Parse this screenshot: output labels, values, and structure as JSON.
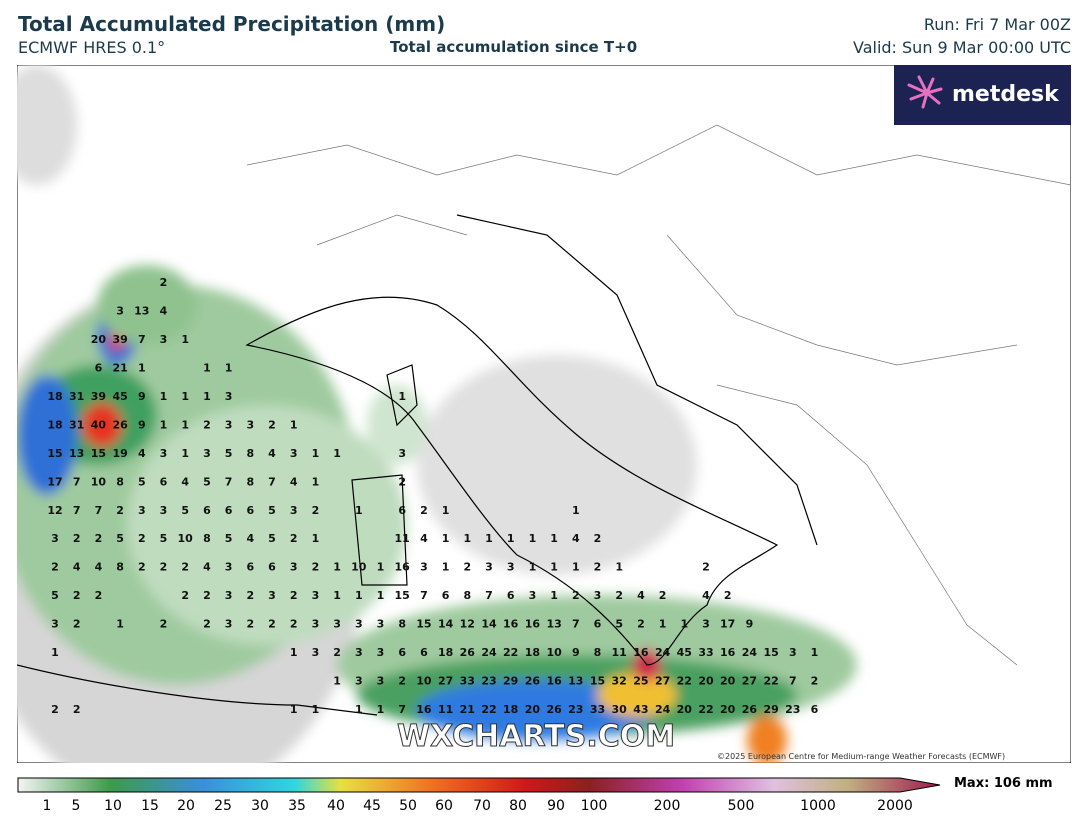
{
  "header": {
    "title": "Total Accumulated Precipitation (mm)",
    "model": "ECMWF HRES 0.1°",
    "subtitle": "Total accumulation since T+0",
    "run": "Run: Fri 7 Mar 00Z",
    "valid": "Valid: Sun 9 Mar 00:00 UTC"
  },
  "logo": "metdesk",
  "watermark": "WXCHARTS.COM",
  "copyright": "©2025 European Centre for Medium-range Weather Forecasts (ECMWF)",
  "map_values": [
    [
      null,
      null,
      null,
      null,
      null,
      2
    ],
    [
      null,
      null,
      null,
      3,
      13,
      4
    ],
    [
      null,
      null,
      20,
      39,
      7,
      3,
      1
    ],
    [
      null,
      null,
      6,
      21,
      1,
      null,
      null,
      1,
      1
    ],
    [
      18,
      31,
      39,
      45,
      9,
      1,
      1,
      1,
      3,
      null,
      null,
      null,
      null,
      null,
      null,
      null,
      1
    ],
    [
      18,
      31,
      40,
      26,
      9,
      1,
      1,
      2,
      3,
      3,
      2,
      1
    ],
    [
      15,
      13,
      15,
      19,
      4,
      3,
      1,
      3,
      5,
      8,
      4,
      3,
      1,
      1,
      null,
      null,
      3
    ],
    [
      17,
      7,
      10,
      8,
      5,
      6,
      4,
      5,
      7,
      8,
      7,
      4,
      1,
      null,
      null,
      null,
      2
    ],
    [
      12,
      7,
      7,
      2,
      3,
      3,
      5,
      6,
      6,
      6,
      5,
      3,
      2,
      null,
      1,
      null,
      6,
      2,
      1,
      null,
      null,
      null,
      null,
      null,
      1
    ],
    [
      3,
      2,
      2,
      5,
      2,
      5,
      10,
      8,
      5,
      4,
      5,
      2,
      1,
      null,
      null,
      null,
      11,
      4,
      1,
      1,
      1,
      1,
      1,
      1,
      4,
      2
    ],
    [
      2,
      4,
      4,
      8,
      2,
      2,
      2,
      4,
      3,
      6,
      6,
      3,
      2,
      1,
      10,
      1,
      16,
      3,
      1,
      2,
      3,
      3,
      1,
      1,
      1,
      2,
      1,
      null,
      null,
      null,
      2
    ],
    [
      5,
      2,
      2,
      null,
      null,
      null,
      2,
      2,
      3,
      2,
      3,
      2,
      3,
      1,
      1,
      1,
      15,
      7,
      6,
      8,
      7,
      6,
      3,
      1,
      2,
      3,
      2,
      4,
      2,
      null,
      4,
      2
    ],
    [
      3,
      2,
      null,
      1,
      null,
      2,
      null,
      2,
      3,
      2,
      2,
      2,
      3,
      3,
      3,
      3,
      8,
      15,
      14,
      12,
      14,
      16,
      16,
      13,
      7,
      6,
      5,
      2,
      1,
      1,
      3,
      17,
      9
    ],
    [
      1,
      null,
      null,
      null,
      null,
      null,
      null,
      null,
      null,
      null,
      null,
      1,
      3,
      2,
      3,
      3,
      6,
      6,
      18,
      26,
      24,
      22,
      18,
      10,
      9,
      8,
      11,
      16,
      24,
      45,
      33,
      16,
      24,
      15,
      3,
      1
    ],
    [
      null,
      null,
      null,
      null,
      null,
      null,
      null,
      null,
      null,
      null,
      null,
      null,
      null,
      1,
      3,
      3,
      2,
      10,
      27,
      33,
      23,
      29,
      26,
      16,
      13,
      15,
      32,
      25,
      27,
      22,
      20,
      20,
      27,
      22,
      7,
      2
    ],
    [
      2,
      2,
      null,
      null,
      null,
      null,
      null,
      null,
      null,
      null,
      null,
      1,
      1,
      null,
      1,
      1,
      7,
      16,
      11,
      21,
      22,
      18,
      20,
      26,
      23,
      33,
      30,
      43,
      24,
      20,
      22,
      20,
      26,
      29,
      23,
      6
    ]
  ],
  "colorbar": {
    "ticks": [
      1,
      5,
      10,
      15,
      20,
      25,
      30,
      35,
      40,
      45,
      50,
      60,
      70,
      80,
      90,
      100,
      200,
      500,
      1000,
      2000
    ],
    "max_label": "Max: 106 mm"
  }
}
